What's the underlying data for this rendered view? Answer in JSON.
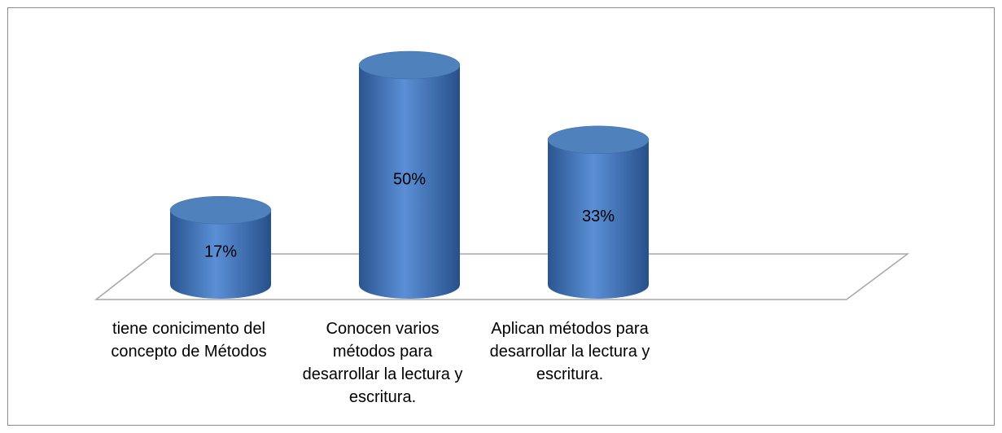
{
  "chart_data": {
    "type": "bar3d-cylinder",
    "categories": [
      "tiene conicimento del concepto de Métodos",
      "Conocen varios métodos para desarrollar la lectura y escritura.",
      "Aplican métodos para desarrollar la lectura y escritura."
    ],
    "values": [
      17,
      50,
      33
    ],
    "value_labels": [
      "17%",
      "50%",
      "33%"
    ],
    "color": "#4f81bd"
  }
}
